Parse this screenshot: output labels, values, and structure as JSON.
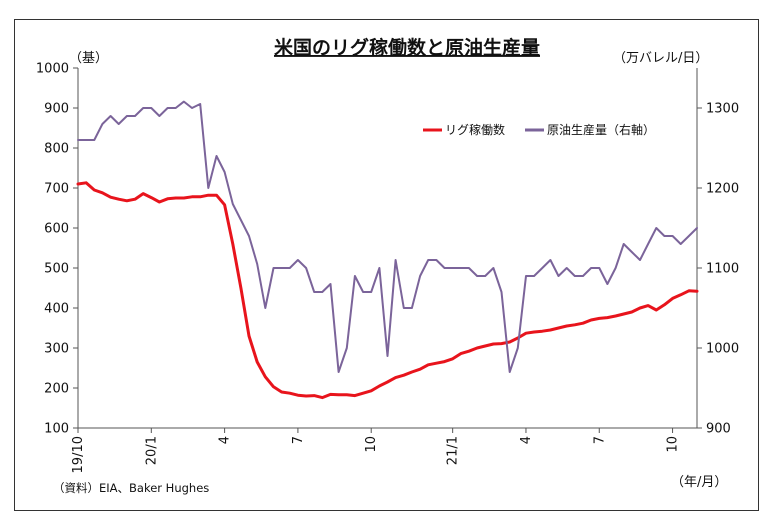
{
  "chart_data": {
    "type": "line",
    "title": "米国のリグ稼働数と原油生産量",
    "left_unit": "（基）",
    "right_unit": "（万バレル/日）",
    "x_unit": "（年/月）",
    "source": "（資料）EIA、Baker Hughes",
    "y_left": {
      "min": 100,
      "max": 1000,
      "ticks": [
        100,
        200,
        300,
        400,
        500,
        600,
        700,
        800,
        900,
        1000
      ]
    },
    "y_right": {
      "min": 900,
      "max": 1350,
      "ticks": [
        900,
        1000,
        1100,
        1200,
        1300
      ]
    },
    "x_count": 77,
    "x_ticks": [
      {
        "index": 0,
        "label": "19/10"
      },
      {
        "index": 9,
        "label": "20/1"
      },
      {
        "index": 18,
        "label": "4"
      },
      {
        "index": 27,
        "label": "7"
      },
      {
        "index": 36,
        "label": "10"
      },
      {
        "index": 46,
        "label": "21/1"
      },
      {
        "index": 55,
        "label": "4"
      },
      {
        "index": 64,
        "label": "7"
      },
      {
        "index": 73,
        "label": "10"
      }
    ],
    "series": [
      {
        "name": "リグ稼働数",
        "axis": "left",
        "color": "#e8141c",
        "values": [
          710,
          713,
          695,
          688,
          677,
          672,
          668,
          672,
          686,
          676,
          665,
          673,
          675,
          675,
          678,
          678,
          682,
          682,
          658,
          560,
          450,
          330,
          265,
          228,
          203,
          190,
          187,
          182,
          180,
          181,
          176,
          184,
          183,
          183,
          181,
          187,
          193,
          205,
          215,
          226,
          232,
          240,
          247,
          258,
          262,
          266,
          273,
          286,
          292,
          300,
          305,
          310,
          311,
          315,
          325,
          337,
          340,
          342,
          345,
          350,
          355,
          358,
          362,
          370,
          374,
          376,
          380,
          385,
          390,
          400,
          406,
          395,
          408,
          424,
          433,
          443,
          442
        ]
      },
      {
        "name": "原油生産量（右軸）",
        "axis": "right",
        "color": "#7b649a",
        "values": [
          1260,
          1260,
          1260,
          1280,
          1290,
          1280,
          1290,
          1290,
          1300,
          1300,
          1290,
          1300,
          1300,
          1308,
          1300,
          1305,
          1200,
          1240,
          1220,
          1180,
          1160,
          1140,
          1105,
          1050,
          1100,
          1100,
          1100,
          1110,
          1100,
          1070,
          1070,
          1080,
          970,
          1000,
          1090,
          1070,
          1070,
          1100,
          990,
          1110,
          1050,
          1050,
          1090,
          1110,
          1110,
          1100,
          1100,
          1100,
          1100,
          1090,
          1090,
          1100,
          1070,
          970,
          1000,
          1090,
          1090,
          1100,
          1110,
          1090,
          1100,
          1090,
          1090,
          1100,
          1100,
          1080,
          1100,
          1130,
          1120,
          1110,
          1130,
          1150,
          1140,
          1140,
          1130,
          1140,
          1150
        ]
      }
    ],
    "legend": {
      "placement": "top-right"
    },
    "grid": false
  }
}
